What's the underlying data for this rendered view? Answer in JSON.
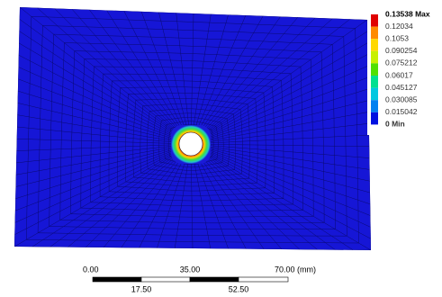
{
  "legend": {
    "entries": [
      "0.13538 Max",
      "0.12034",
      "0.1053",
      "0.090254",
      "0.075212",
      "0.06017",
      "0.045127",
      "0.030085",
      "0.015042",
      "0 Min"
    ]
  },
  "scale_bar": {
    "top_labels": [
      "0.00",
      "35.00",
      "70.00 (mm)"
    ],
    "bottom_labels": [
      "17.50",
      "52.50"
    ]
  }
}
